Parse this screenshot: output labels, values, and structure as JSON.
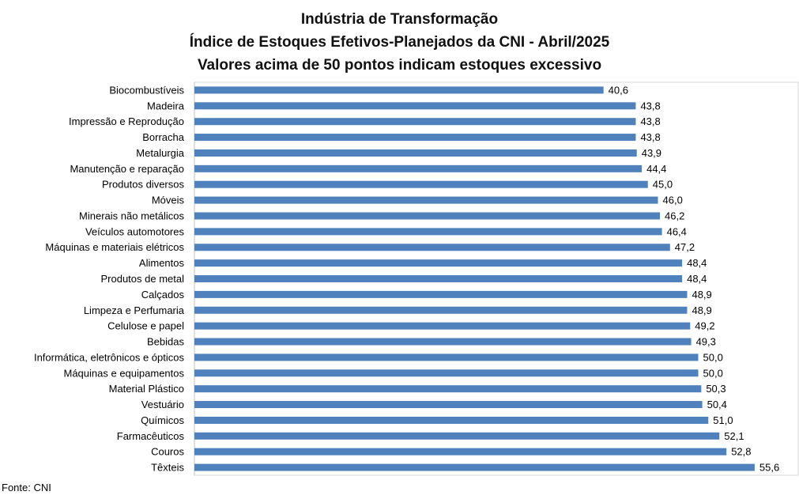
{
  "chart_data": {
    "type": "bar",
    "orientation": "horizontal",
    "title": [
      "Indústria de Transformação",
      "Índice de Estoques Efetivos-Planejados da CNI - Abril/2025",
      "Valores acima de 50 pontos indicam estoques excessivo"
    ],
    "categories": [
      "Biocombustíveis",
      "Madeira",
      "Impressão e Reprodução",
      "Borracha",
      "Metalurgia",
      "Manutenção e reparação",
      "Produtos diversos",
      "Móveis",
      "Minerais não metálicos",
      "Veículos automotores",
      "Máquinas e materiais elétricos",
      "Alimentos",
      "Produtos de metal",
      "Calçados",
      "Limpeza e Perfumaria",
      "Celulose e papel",
      "Bebidas",
      "Informática, eletrônicos e ópticos",
      "Máquinas e equipamentos",
      "Material Plástico",
      "Vestuário",
      "Químicos",
      "Farmacêuticos",
      "Couros",
      "Têxteis"
    ],
    "values": [
      40.6,
      43.8,
      43.8,
      43.8,
      43.9,
      44.4,
      45.0,
      46.0,
      46.2,
      46.4,
      47.2,
      48.4,
      48.4,
      48.9,
      48.9,
      49.2,
      49.3,
      50.0,
      50.0,
      50.3,
      50.4,
      51.0,
      52.1,
      52.8,
      55.6
    ],
    "value_labels": [
      "40,6",
      "43,8",
      "43,8",
      "43,8",
      "43,9",
      "44,4",
      "45,0",
      "46,0",
      "46,2",
      "46,4",
      "47,2",
      "48,4",
      "48,4",
      "48,9",
      "48,9",
      "49,2",
      "49,3",
      "50,0",
      "50,0",
      "50,3",
      "50,4",
      "51,0",
      "52,1",
      "52,8",
      "55,6"
    ],
    "xlabel": "",
    "ylabel": "",
    "xlim": [
      0,
      60
    ],
    "grid": true,
    "legend": "none",
    "bar_color": "#4f81bd"
  },
  "footer": {
    "source": "Fonte: CNI"
  }
}
